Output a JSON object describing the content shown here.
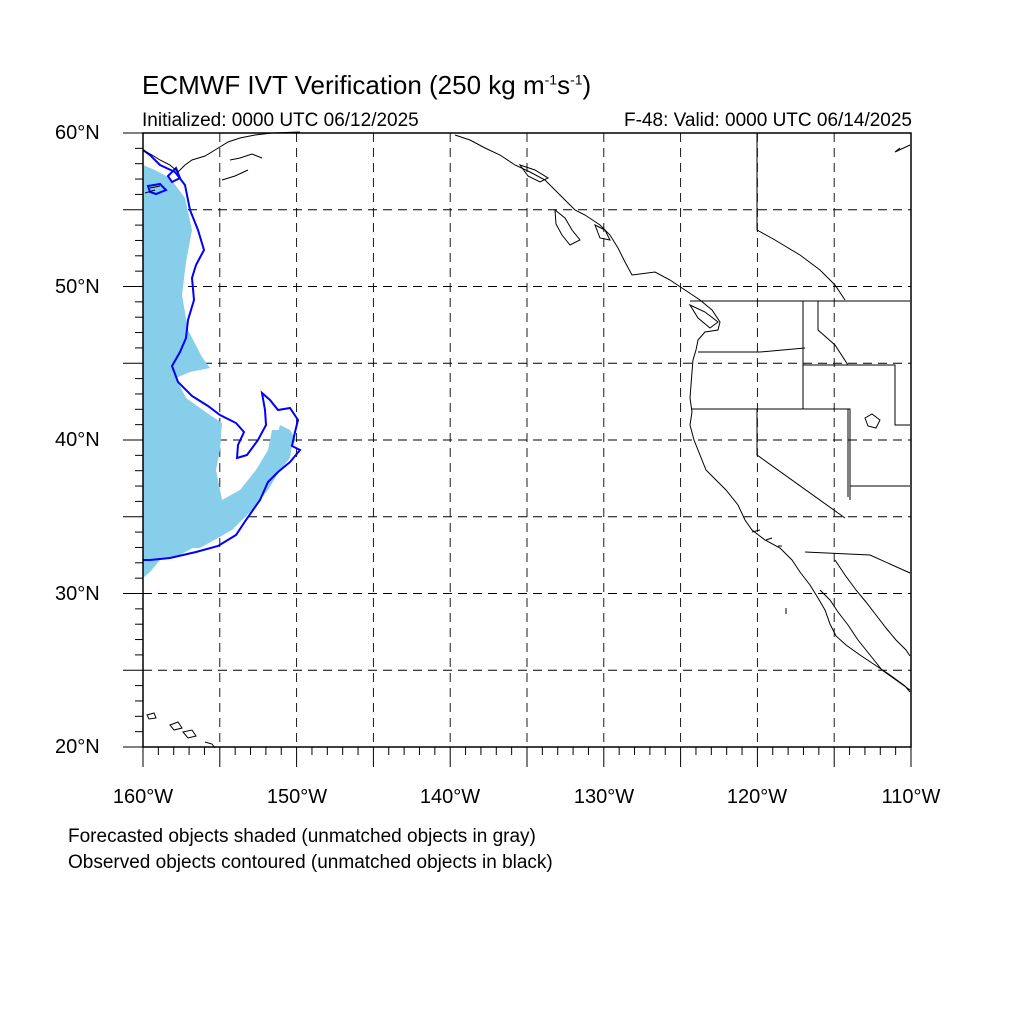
{
  "title": {
    "prefix": "ECMWF IVT Verification (250 kg m",
    "exp1": "-1",
    "mid": "s",
    "exp2": "-1",
    "suffix": ")"
  },
  "subtitle": {
    "initialized": "Initialized: 0000 UTC 06/12/2025",
    "valid": "F-48: Valid: 0000 UTC 06/14/2025"
  },
  "map": {
    "lon_range": [
      -160,
      -110
    ],
    "lat_range": [
      20,
      60
    ],
    "grid_lons": [
      -155,
      -150,
      -145,
      -140,
      -135,
      -130,
      -125,
      -120,
      -115
    ],
    "grid_lats": [
      25,
      30,
      35,
      40,
      45,
      50,
      55
    ],
    "grid": true,
    "lat_labels": [
      "60°N",
      "50°N",
      "40°N",
      "30°N",
      "20°N"
    ],
    "lon_labels": [
      "160°W",
      "150°W",
      "140°W",
      "130°W",
      "120°W",
      "110°W"
    ],
    "forecast_color": "#87CEEB",
    "observed_color": "#0000FF",
    "coast_color": "#000000"
  },
  "legend": {
    "line1": "Forecasted objects shaded (unmatched objects in gray)",
    "line2": "Observed objects contoured (unmatched objects in black)"
  }
}
